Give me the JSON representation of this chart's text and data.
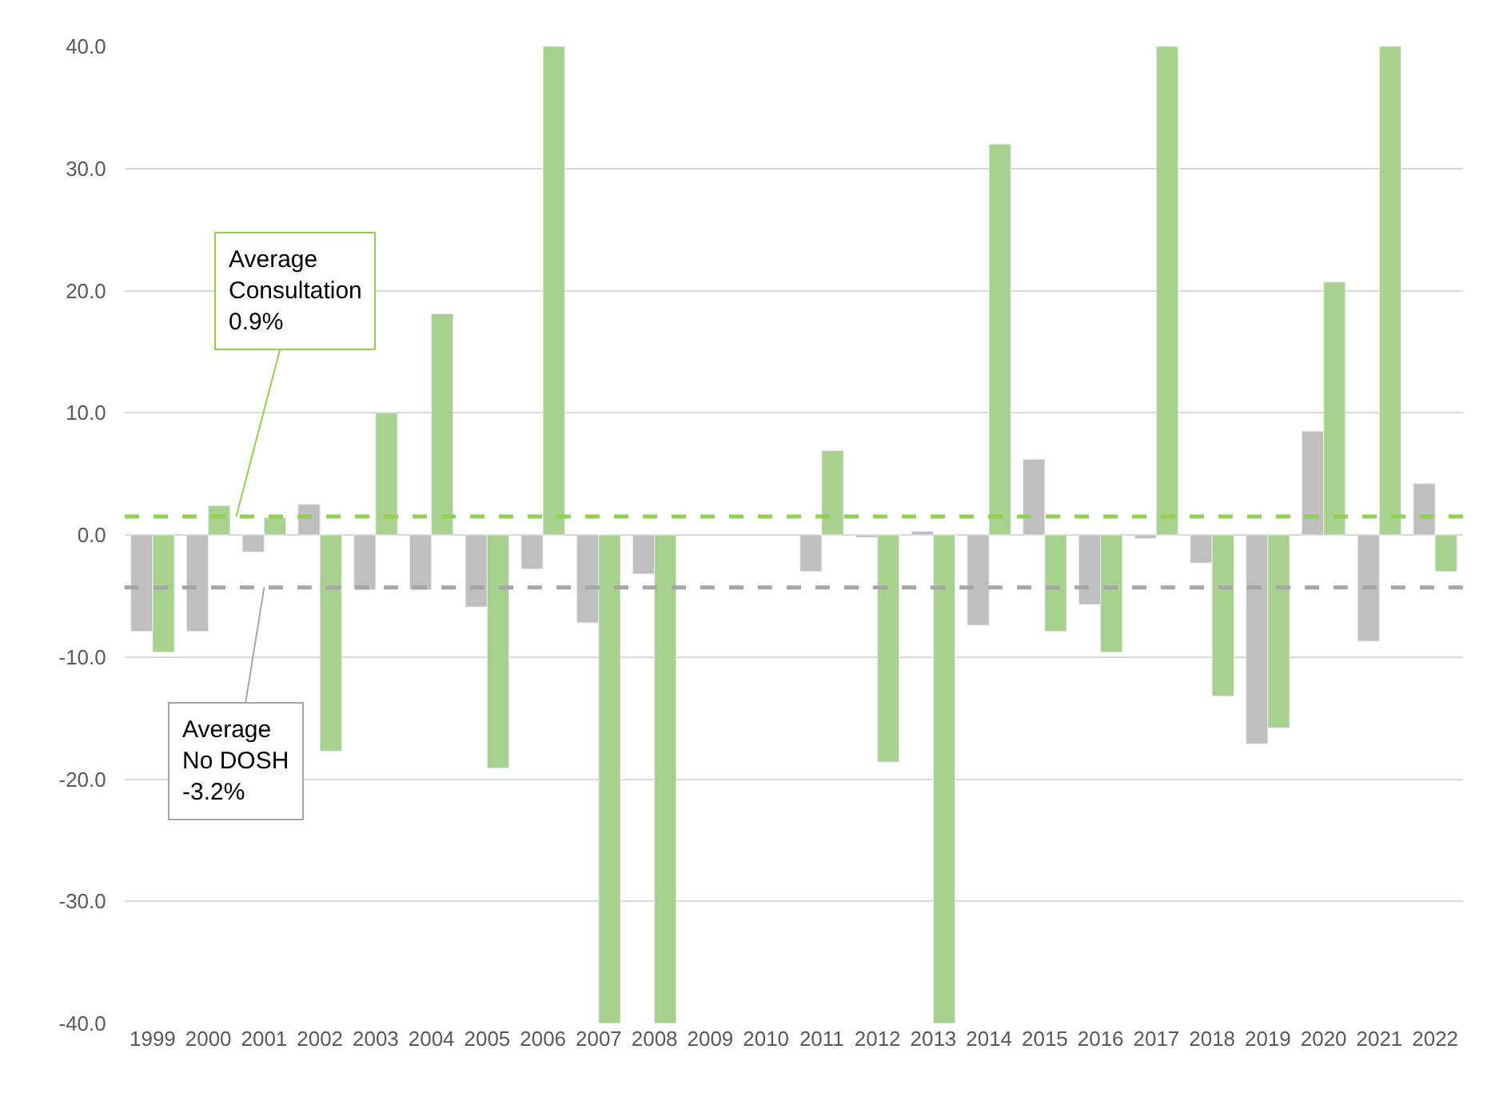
{
  "chart_data": {
    "type": "bar",
    "categories": [
      "1999",
      "2000",
      "2001",
      "2002",
      "2003",
      "2004",
      "2005",
      "2006",
      "2007",
      "2008",
      "2009",
      "2010",
      "2011",
      "2012",
      "2013",
      "2014",
      "2015",
      "2016",
      "2017",
      "2018",
      "2019",
      "2020",
      "2021",
      "2022"
    ],
    "series": [
      {
        "color": "#bfbfbf",
        "values": [
          -7.9,
          -7.9,
          -1.4,
          2.5,
          -4.5,
          -4.5,
          -5.9,
          -2.8,
          -7.2,
          -3.2,
          null,
          null,
          -3.0,
          -0.2,
          0.3,
          -7.4,
          6.2,
          -5.7,
          -0.3,
          -2.3,
          -17.1,
          8.5,
          -8.7,
          4.2
        ]
      },
      {
        "color": "#a9d18e",
        "values": [
          -9.6,
          2.4,
          1.4,
          -17.7,
          10.0,
          18.1,
          -19.1,
          40,
          -40,
          -40,
          null,
          null,
          6.9,
          -18.6,
          -40,
          32.0,
          -7.9,
          -9.6,
          40,
          -13.2,
          -15.8,
          20.7,
          40,
          -3.0
        ]
      }
    ],
    "ylim": [
      -40,
      40
    ],
    "yticks": [
      {
        "value": -40,
        "label": "-40.0"
      },
      {
        "value": -30,
        "label": "-30.0"
      },
      {
        "value": -20,
        "label": "-20.0"
      },
      {
        "value": -10,
        "label": "-10.0"
      },
      {
        "value": 0,
        "label": "0.0"
      },
      {
        "value": 10,
        "label": "10.0"
      },
      {
        "value": 20,
        "label": "20.0"
      },
      {
        "value": 30,
        "label": "30.0"
      },
      {
        "value": 40,
        "label": "40.0"
      }
    ],
    "grid": "y",
    "ref_lines": [
      {
        "axis": "y",
        "value": 1.5,
        "label": "Average\nConsultation\n0.9%",
        "color": "#92d050",
        "line_style": "dashed"
      },
      {
        "axis": "y",
        "value": -4.3,
        "label": "Average\nNo DOSH\n-3.2%",
        "color": "#a6a6a6",
        "line_style": "dashed"
      }
    ]
  }
}
